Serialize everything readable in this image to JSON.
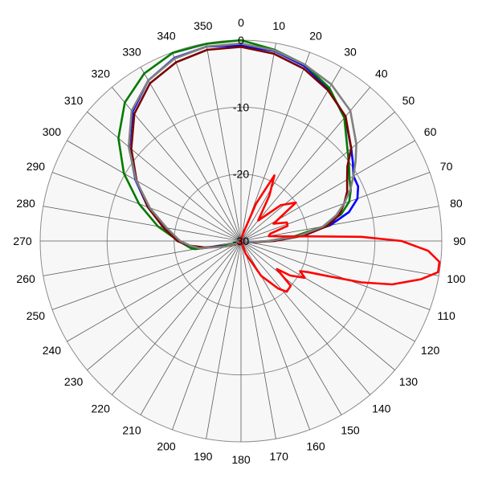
{
  "chart_data": {
    "type": "line",
    "subtype": "polar",
    "title": "",
    "angle_direction": "clockwise",
    "zero_angle": "top",
    "radial_range": [
      -30,
      0
    ],
    "radial_ticks": [
      -30,
      -20,
      -10,
      0
    ],
    "radial_tick_labels": [
      "-30",
      "-20",
      "-10",
      "0"
    ],
    "angle_ticks": [
      0,
      10,
      20,
      30,
      40,
      50,
      60,
      70,
      80,
      90,
      100,
      110,
      120,
      130,
      140,
      150,
      160,
      170,
      180,
      190,
      200,
      210,
      220,
      230,
      240,
      250,
      260,
      270,
      280,
      290,
      300,
      310,
      320,
      330,
      340,
      350
    ],
    "angle_tick_labels": [
      "0",
      "10",
      "20",
      "30",
      "40",
      "50",
      "60",
      "70",
      "80",
      "90",
      "100",
      "110",
      "120",
      "130",
      "140",
      "150",
      "160",
      "170",
      "180",
      "190",
      "200",
      "210",
      "220",
      "230",
      "240",
      "250",
      "260",
      "270",
      "280",
      "290",
      "300",
      "310",
      "320",
      "330",
      "340",
      "350"
    ],
    "grid": true,
    "legend": "none",
    "background_color": "#f7f7f7",
    "series": [
      {
        "color": "#0000ff",
        "points": [
          [
            0,
            -0.8
          ],
          [
            10,
            -1.2
          ],
          [
            20,
            -2.2
          ],
          [
            30,
            -3.8
          ],
          [
            40,
            -5.8
          ],
          [
            50,
            -8.5
          ],
          [
            55,
            -9.6
          ],
          [
            60,
            -10.6
          ],
          [
            65,
            -10.7
          ],
          [
            70,
            -11.5
          ],
          [
            75,
            -13.3
          ],
          [
            80,
            -16.5
          ],
          [
            85,
            -21.5
          ],
          [
            90,
            -25.8
          ],
          [
            95,
            -27.9
          ],
          [
            100,
            -29.0
          ],
          [
            110,
            -29.7
          ],
          [
            130,
            -30
          ],
          [
            180,
            -30
          ],
          [
            230,
            -30
          ],
          [
            240,
            -29.6
          ],
          [
            250,
            -28.3
          ],
          [
            260,
            -23.5
          ],
          [
            262,
            -22.9
          ],
          [
            270,
            -20.9
          ],
          [
            280,
            -18.3
          ],
          [
            290,
            -15.2
          ],
          [
            300,
            -11.8
          ],
          [
            310,
            -8.2
          ],
          [
            320,
            -4.8
          ],
          [
            330,
            -2.3
          ],
          [
            340,
            -0.9
          ],
          [
            350,
            -0.5
          ],
          [
            360,
            -0.8
          ]
        ]
      },
      {
        "color": "#007a00",
        "points": [
          [
            0,
            0.0
          ],
          [
            10,
            -1.0
          ],
          [
            20,
            -2.0
          ],
          [
            30,
            -3.6
          ],
          [
            40,
            -6.0
          ],
          [
            50,
            -9.2
          ],
          [
            55,
            -10.3
          ],
          [
            60,
            -11.3
          ],
          [
            65,
            -11.9
          ],
          [
            70,
            -12.8
          ],
          [
            75,
            -14.5
          ],
          [
            80,
            -17.5
          ],
          [
            85,
            -22.0
          ],
          [
            90,
            -25.8
          ],
          [
            95,
            -28.3
          ],
          [
            100,
            -29.2
          ],
          [
            110,
            -29.8
          ],
          [
            130,
            -30
          ],
          [
            180,
            -30
          ],
          [
            230,
            -30
          ],
          [
            240,
            -29.7
          ],
          [
            250,
            -28.6
          ],
          [
            255,
            -27.1
          ],
          [
            260,
            -23.0
          ],
          [
            262,
            -22.4
          ],
          [
            270,
            -20.7
          ],
          [
            280,
            -17.4
          ],
          [
            290,
            -13.8
          ],
          [
            300,
            -9.8
          ],
          [
            310,
            -6.1
          ],
          [
            320,
            -3.0
          ],
          [
            330,
            -1.1
          ],
          [
            340,
            -0.1
          ],
          [
            350,
            -0.1
          ],
          [
            360,
            0.0
          ]
        ]
      },
      {
        "color": "#7a0000",
        "points": [
          [
            0,
            -1.0
          ],
          [
            10,
            -1.6
          ],
          [
            20,
            -2.6
          ],
          [
            30,
            -4.0
          ],
          [
            40,
            -5.7
          ],
          [
            50,
            -8.5
          ],
          [
            55,
            -10.6
          ],
          [
            60,
            -11.7
          ],
          [
            65,
            -12.5
          ],
          [
            70,
            -13.6
          ],
          [
            75,
            -14.8
          ],
          [
            80,
            -16.8
          ],
          [
            85,
            -20.5
          ],
          [
            90,
            -25.0
          ],
          [
            95,
            -28.0
          ],
          [
            100,
            -29.4
          ],
          [
            110,
            -29.9
          ],
          [
            130,
            -30
          ],
          [
            180,
            -30
          ],
          [
            230,
            -30
          ],
          [
            240,
            -29.0
          ],
          [
            250,
            -27.8
          ],
          [
            260,
            -24.5
          ],
          [
            265,
            -22.2
          ],
          [
            270,
            -20.5
          ],
          [
            280,
            -18.2
          ],
          [
            290,
            -15.2
          ],
          [
            300,
            -12.0
          ],
          [
            310,
            -8.6
          ],
          [
            320,
            -5.2
          ],
          [
            330,
            -2.8
          ],
          [
            340,
            -1.6
          ],
          [
            350,
            -1.0
          ],
          [
            360,
            -1.0
          ]
        ]
      },
      {
        "color": "#808080",
        "points": [
          [
            0,
            -0.5
          ],
          [
            10,
            -1.1
          ],
          [
            20,
            -2.0
          ],
          [
            30,
            -3.0
          ],
          [
            40,
            -4.6
          ],
          [
            50,
            -7.5
          ],
          [
            55,
            -9.1
          ],
          [
            60,
            -10.6
          ],
          [
            65,
            -12.0
          ],
          [
            70,
            -13.6
          ],
          [
            75,
            -15.3
          ],
          [
            80,
            -17.6
          ],
          [
            85,
            -21.3
          ],
          [
            90,
            -25.8
          ],
          [
            95,
            -28.4
          ],
          [
            100,
            -29.5
          ],
          [
            110,
            -29.9
          ],
          [
            130,
            -30
          ],
          [
            180,
            -30
          ],
          [
            230,
            -30
          ],
          [
            240,
            -29.2
          ],
          [
            250,
            -27.6
          ],
          [
            260,
            -23.7
          ],
          [
            265,
            -22.3
          ],
          [
            270,
            -20.9
          ],
          [
            280,
            -18.7
          ],
          [
            290,
            -15.5
          ],
          [
            300,
            -11.9
          ],
          [
            310,
            -8.1
          ],
          [
            320,
            -4.6
          ],
          [
            330,
            -2.3
          ],
          [
            340,
            -1.0
          ],
          [
            350,
            -0.5
          ],
          [
            360,
            -0.5
          ]
        ]
      },
      {
        "color": "#ff0000",
        "points": [
          [
            0,
            -30
          ],
          [
            10,
            -29.5
          ],
          [
            18,
            -28.3
          ],
          [
            22,
            -24.0
          ],
          [
            27,
            -19.0
          ],
          [
            32,
            -22.0
          ],
          [
            40,
            -26.0
          ],
          [
            48,
            -22.0
          ],
          [
            55,
            -20.0
          ],
          [
            62,
            -24.5
          ],
          [
            68,
            -22.6
          ],
          [
            72,
            -22.7
          ],
          [
            76,
            -25.5
          ],
          [
            80,
            -25.8
          ],
          [
            84,
            -23.5
          ],
          [
            86,
            -20.0
          ],
          [
            88,
            -12.0
          ],
          [
            90,
            -6.0
          ],
          [
            93,
            -2.0
          ],
          [
            96,
            -0.2
          ],
          [
            99,
            -0.2
          ],
          [
            102,
            -2.5
          ],
          [
            106,
            -6.5
          ],
          [
            109,
            -11.0
          ],
          [
            112,
            -16.0
          ],
          [
            115,
            -19.0
          ],
          [
            117,
            -20.1
          ],
          [
            120,
            -19.0
          ],
          [
            125,
            -21.0
          ],
          [
            128,
            -23.2
          ],
          [
            132,
            -20.0
          ],
          [
            138,
            -19.8
          ],
          [
            142,
            -21.0
          ],
          [
            150,
            -24.0
          ],
          [
            160,
            -28.0
          ],
          [
            170,
            -30.0
          ],
          [
            180,
            -30
          ],
          [
            200,
            -30
          ],
          [
            210,
            -29.6
          ],
          [
            220,
            -30
          ],
          [
            260,
            -30
          ],
          [
            300,
            -30
          ],
          [
            340,
            -30
          ],
          [
            360,
            -30
          ]
        ]
      }
    ]
  }
}
